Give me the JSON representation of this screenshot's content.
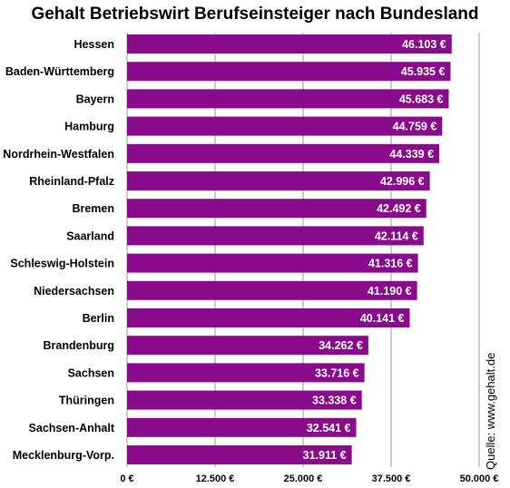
{
  "chart_data": {
    "type": "bar",
    "orientation": "horizontal",
    "title": "Gehalt Betriebswirt Berufseinsteiger nach Bundesland",
    "categories": [
      "Hessen",
      "Baden-Württemberg",
      "Bayern",
      "Hamburg",
      "Nordrhein-Westfalen",
      "Rheinland-Pfalz",
      "Bremen",
      "Saarland",
      "Schleswig-Holstein",
      "Niedersachsen",
      "Berlin",
      "Brandenburg",
      "Sachsen",
      "Thüringen",
      "Sachsen-Anhalt",
      "Mecklenburg-Vorp."
    ],
    "values": [
      46103,
      45935,
      45683,
      44759,
      44339,
      42996,
      42492,
      42114,
      41316,
      41190,
      40141,
      34262,
      33716,
      33338,
      32541,
      31911
    ],
    "value_labels": [
      "46.103 €",
      "45.935 €",
      "45.683 €",
      "44.759 €",
      "44.339 €",
      "42.996 €",
      "42.492 €",
      "42.114 €",
      "41.316 €",
      "41.190 €",
      "40.141 €",
      "34.262 €",
      "33.716 €",
      "33.338 €",
      "32.541 €",
      "31.911 €"
    ],
    "xlim": [
      0,
      50000
    ],
    "xticks": [
      0,
      12500,
      25000,
      37500,
      50000
    ],
    "xtick_labels": [
      "0 €",
      "12.500 €",
      "25.000 €",
      "37.500 €",
      "50.000 €"
    ],
    "grid": true,
    "bar_color": "#8a0a8c",
    "source": "Quelle: www.gehalt.de"
  }
}
